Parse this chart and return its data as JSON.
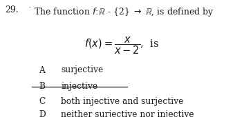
{
  "question_number": "29.",
  "bg_color": "#ffffff",
  "text_color": "#1a1a1a",
  "fs_main": 9.0,
  "fs_formula": 10.5,
  "fs_options": 8.8,
  "options": [
    {
      "letter": "A",
      "text": "surjective",
      "strikethrough": false
    },
    {
      "letter": "B",
      "text": "injective",
      "strikethrough": true
    },
    {
      "letter": "C",
      "text": "both injective and surjective",
      "strikethrough": false
    },
    {
      "letter": "D",
      "text": "neither surjective nor injective",
      "strikethrough": false
    }
  ]
}
